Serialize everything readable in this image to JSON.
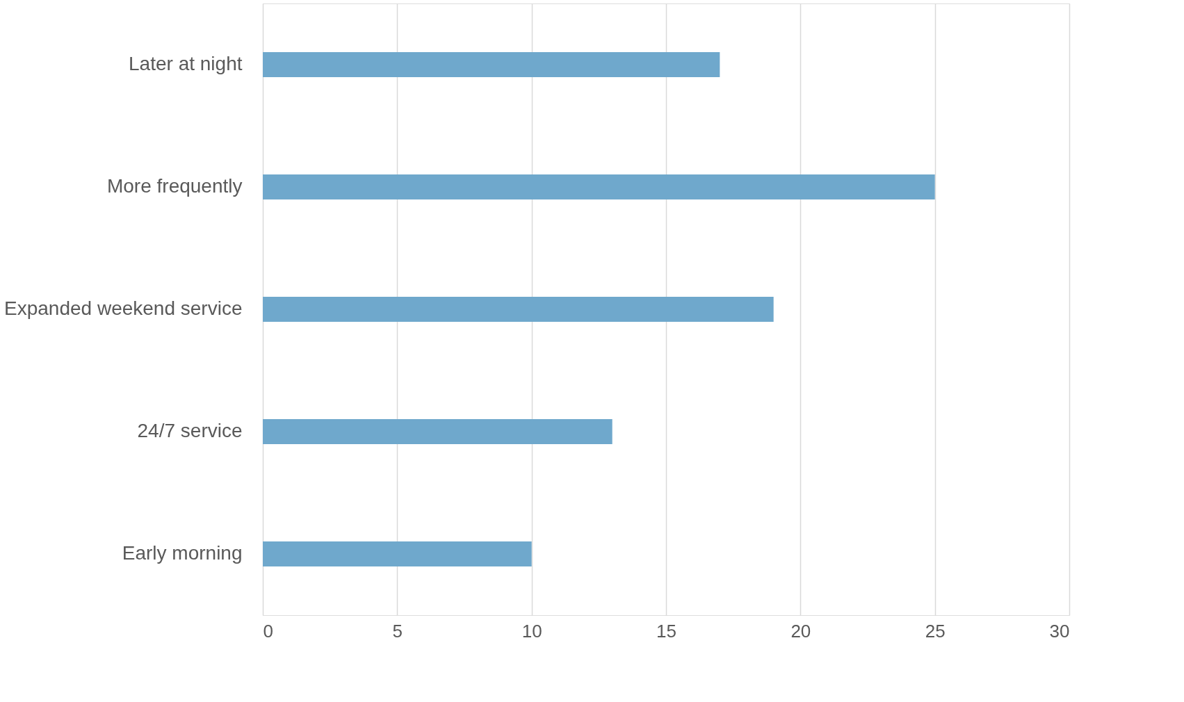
{
  "chart_data": {
    "type": "bar",
    "orientation": "horizontal",
    "categories": [
      "Later at night",
      "More frequently",
      "Expanded weekend service",
      "24/7 service",
      "Early morning"
    ],
    "values": [
      17,
      25,
      19,
      13,
      10
    ],
    "color": "#6fa8cc",
    "xlim": [
      0,
      30
    ],
    "xticks": [
      0,
      5,
      10,
      15,
      20,
      25,
      30
    ],
    "grid": "x"
  }
}
